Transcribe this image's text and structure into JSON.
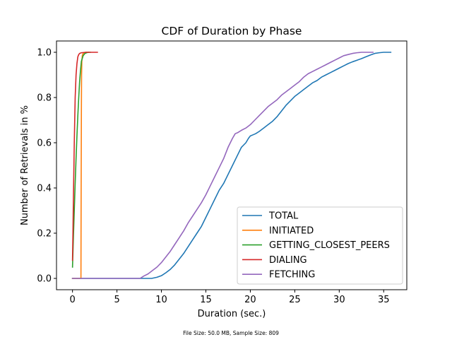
{
  "chart_data": {
    "type": "line",
    "title": "CDF of Duration by Phase",
    "xlabel": "Duration (sec.)",
    "ylabel": "Number of Retrievals in %",
    "footnote": "File Size: 50.0 MB, Sample Size: 809",
    "xlim": [
      -1.8,
      37.6
    ],
    "ylim": [
      -0.05,
      1.05
    ],
    "xticks": [
      0,
      5,
      10,
      15,
      20,
      25,
      30,
      35
    ],
    "xtick_labels": [
      "0",
      "5",
      "10",
      "15",
      "20",
      "25",
      "30",
      "35"
    ],
    "yticks": [
      0.0,
      0.2,
      0.4,
      0.6,
      0.8,
      1.0
    ],
    "ytick_labels": [
      "0.0",
      "0.2",
      "0.4",
      "0.6",
      "0.8",
      "1.0"
    ],
    "grid": false,
    "legend_position": "lower-right",
    "series": [
      {
        "name": "TOTAL",
        "color": "#1f77b4",
        "x": [
          0,
          8.9,
          9.5,
          10.0,
          10.5,
          11.0,
          11.5,
          12.0,
          12.5,
          13.0,
          13.5,
          14.0,
          14.5,
          15.0,
          15.5,
          16.0,
          16.5,
          17.0,
          17.5,
          18.0,
          18.5,
          19.0,
          19.5,
          19.8,
          20.0,
          20.3,
          20.6,
          21.0,
          21.5,
          22.0,
          22.5,
          23.0,
          23.5,
          24.0,
          24.5,
          25.0,
          25.5,
          26.0,
          26.5,
          27.0,
          27.5,
          28.0,
          28.5,
          29.0,
          29.5,
          30.0,
          30.5,
          31.0,
          31.5,
          32.0,
          32.5,
          33.0,
          33.5,
          34.0,
          34.5,
          35.0,
          35.3,
          35.8
        ],
        "y": [
          0,
          0,
          0.005,
          0.012,
          0.025,
          0.04,
          0.06,
          0.085,
          0.11,
          0.14,
          0.17,
          0.2,
          0.23,
          0.27,
          0.31,
          0.35,
          0.39,
          0.42,
          0.46,
          0.5,
          0.54,
          0.58,
          0.6,
          0.62,
          0.63,
          0.635,
          0.64,
          0.65,
          0.665,
          0.68,
          0.695,
          0.715,
          0.74,
          0.765,
          0.785,
          0.805,
          0.82,
          0.835,
          0.85,
          0.865,
          0.875,
          0.89,
          0.9,
          0.91,
          0.92,
          0.93,
          0.94,
          0.95,
          0.958,
          0.965,
          0.972,
          0.98,
          0.988,
          0.995,
          0.998,
          1.0,
          1.0,
          1.0
        ]
      },
      {
        "name": "INITIATED",
        "color": "#ff7f0e",
        "x": [
          0,
          0.95,
          0.96,
          0.98,
          1.0,
          1.02,
          1.05,
          1.1,
          1.2,
          1.3,
          1.5,
          1.8
        ],
        "y": [
          0,
          0,
          0.2,
          0.5,
          0.75,
          0.9,
          0.96,
          0.985,
          0.995,
          0.998,
          1.0,
          1.0
        ]
      },
      {
        "name": "GETTING_CLOSEST_PEERS",
        "color": "#2ca02c",
        "x": [
          0,
          0.1,
          0.2,
          0.3,
          0.4,
          0.5,
          0.6,
          0.7,
          0.8,
          0.9,
          1.0,
          1.2,
          1.4,
          1.6,
          1.8,
          2.0
        ],
        "y": [
          0.05,
          0.18,
          0.3,
          0.42,
          0.53,
          0.63,
          0.72,
          0.8,
          0.87,
          0.92,
          0.96,
          0.985,
          0.995,
          0.998,
          1.0,
          1.0
        ]
      },
      {
        "name": "DIALING",
        "color": "#d62728",
        "x": [
          0,
          0.05,
          0.1,
          0.2,
          0.3,
          0.4,
          0.5,
          0.6,
          0.7,
          0.8,
          1.0,
          1.5,
          2.0,
          2.5,
          2.8
        ],
        "y": [
          0.08,
          0.2,
          0.35,
          0.6,
          0.8,
          0.9,
          0.95,
          0.98,
          0.99,
          0.995,
          0.998,
          1.0,
          1.0,
          1.0,
          1.0
        ]
      },
      {
        "name": "FETCHING",
        "color": "#9467bd",
        "x": [
          0,
          7.6,
          8.0,
          8.5,
          9.0,
          9.5,
          10.0,
          10.5,
          11.0,
          11.5,
          12.0,
          12.5,
          13.0,
          13.5,
          14.0,
          14.5,
          15.0,
          15.5,
          16.0,
          16.5,
          17.0,
          17.5,
          18.0,
          18.3,
          18.6,
          19.0,
          19.5,
          20.0,
          20.5,
          21.0,
          21.5,
          22.0,
          22.5,
          23.0,
          23.5,
          24.0,
          24.5,
          25.0,
          25.5,
          26.0,
          26.5,
          27.0,
          27.5,
          28.0,
          28.5,
          29.0,
          29.5,
          30.0,
          30.5,
          31.0,
          31.5,
          32.0,
          32.5,
          33.0,
          33.5,
          33.8
        ],
        "y": [
          0,
          0,
          0.01,
          0.02,
          0.035,
          0.05,
          0.07,
          0.095,
          0.12,
          0.15,
          0.18,
          0.21,
          0.245,
          0.275,
          0.305,
          0.335,
          0.37,
          0.41,
          0.45,
          0.49,
          0.53,
          0.58,
          0.62,
          0.64,
          0.645,
          0.655,
          0.665,
          0.68,
          0.7,
          0.72,
          0.74,
          0.76,
          0.775,
          0.79,
          0.81,
          0.825,
          0.84,
          0.855,
          0.87,
          0.89,
          0.905,
          0.915,
          0.925,
          0.935,
          0.945,
          0.955,
          0.965,
          0.975,
          0.985,
          0.99,
          0.995,
          0.998,
          1.0,
          1.0,
          1.0,
          1.0
        ]
      }
    ]
  }
}
